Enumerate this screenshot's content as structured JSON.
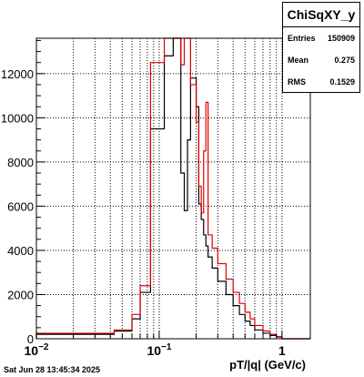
{
  "stats_box": {
    "title": "ChiSqXY_y",
    "entries_label": "Entries",
    "entries_value": "150909",
    "mean_label": "Mean",
    "mean_value": "0.275",
    "rms_label": "RMS",
    "rms_value": "0.1529"
  },
  "timestamp": "Sat Jun 28 13:45:34 2025",
  "chart_data": {
    "type": "histogram",
    "xlabel": "pT/|q| (GeV/c)",
    "x_scale": "log",
    "xlim": [
      0.01,
      1.7
    ],
    "ylim": [
      0,
      13600
    ],
    "y_ticks": [
      0,
      2000,
      4000,
      6000,
      8000,
      10000,
      12000
    ],
    "x_ticks": [
      {
        "value": 0.01,
        "label": "10",
        "exp": "−2"
      },
      {
        "value": 0.1,
        "label": "10",
        "exp": "−1"
      },
      {
        "value": 1,
        "label": "1",
        "exp": ""
      }
    ],
    "grid": true,
    "series": [
      {
        "color": "#000000",
        "edges": [
          0.01,
          0.043,
          0.06,
          0.07,
          0.085,
          0.11,
          0.13,
          0.15,
          0.16,
          0.17,
          0.18,
          0.2,
          0.21,
          0.22,
          0.23,
          0.24,
          0.25,
          0.27,
          0.3,
          0.35,
          0.4,
          0.45,
          0.5,
          0.55,
          0.6,
          0.7,
          0.8,
          0.9,
          1.0,
          1.7
        ],
        "values": [
          200,
          350,
          900,
          2100,
          9500,
          12800,
          13600,
          7500,
          5800,
          9000,
          11800,
          10500,
          6100,
          5400,
          4700,
          4200,
          3700,
          3200,
          2600,
          2000,
          1500,
          1100,
          800,
          600,
          400,
          250,
          150,
          80,
          0
        ]
      },
      {
        "color": "#e00000",
        "edges": [
          0.01,
          0.043,
          0.06,
          0.07,
          0.085,
          0.11,
          0.13,
          0.15,
          0.16,
          0.17,
          0.18,
          0.2,
          0.21,
          0.22,
          0.23,
          0.24,
          0.25,
          0.27,
          0.3,
          0.35,
          0.4,
          0.45,
          0.5,
          0.55,
          0.6,
          0.7,
          0.8,
          0.9,
          1.0,
          1.7
        ],
        "values": [
          250,
          400,
          1100,
          2400,
          12500,
          13600,
          13600,
          12400,
          13600,
          13600,
          11500,
          9800,
          6900,
          5700,
          8500,
          10700,
          4700,
          4100,
          3400,
          2700,
          2100,
          1600,
          1200,
          900,
          600,
          350,
          200,
          100,
          0
        ]
      }
    ]
  }
}
